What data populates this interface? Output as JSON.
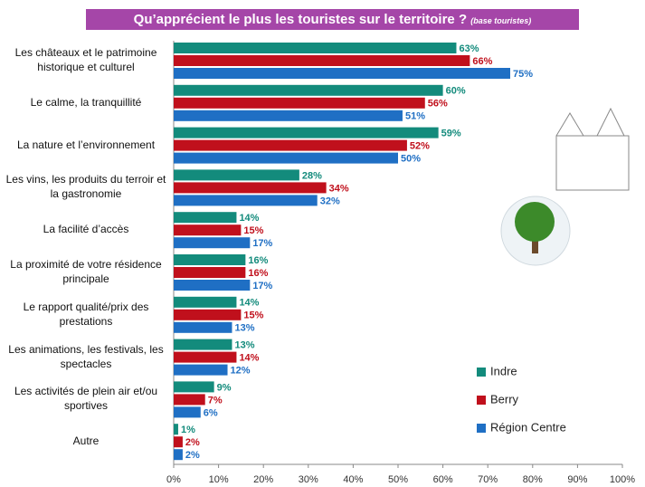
{
  "chart_data": {
    "type": "bar",
    "title": "Qu’apprécient le plus les touristes sur le territoire ?",
    "subtitle": "(base touristes)",
    "categories": [
      "Les châteaux et le patrimoine historique et culturel",
      "Le calme, la tranquillité",
      "La nature et l’environnement",
      "Les vins, les produits du terroir et la gastronomie",
      "La facilité d’accès",
      "La proximité de votre résidence principale",
      "Le rapport qualité/prix des prestations",
      "Les animations, les festivals, les spectacles",
      "Les activités de plein air et/ou sportives",
      "Autre"
    ],
    "series": [
      {
        "name": "Indre",
        "color": "#138b7c",
        "values": [
          63,
          60,
          59,
          28,
          14,
          16,
          14,
          13,
          9,
          1
        ],
        "value_labels": [
          "63%",
          "60%",
          "59%",
          "28%",
          "14%",
          "16%",
          "14%",
          "13%",
          "9%",
          "1%"
        ]
      },
      {
        "name": "Berry",
        "color": "#c0101c",
        "values": [
          66,
          56,
          52,
          34,
          15,
          16,
          15,
          14,
          7,
          2
        ],
        "value_labels": [
          "66%",
          "56%",
          "52%",
          "34%",
          "15%",
          "16%",
          "15%",
          "14%",
          "7%",
          "2%"
        ]
      },
      {
        "name": "Région Centre",
        "color": "#1f6fc4",
        "values": [
          75,
          51,
          50,
          32,
          17,
          17,
          13,
          12,
          6,
          2
        ],
        "value_labels": [
          "75%",
          "51%",
          "50%",
          "32%",
          "17%",
          "17%",
          "13%",
          "12%",
          "6%",
          "2%"
        ]
      }
    ],
    "xlim": [
      0,
      100
    ],
    "xticks": [
      {
        "value": 0,
        "label": "0%"
      },
      {
        "value": 10,
        "label": "10%"
      },
      {
        "value": 20,
        "label": "20%"
      },
      {
        "value": 30,
        "label": "30%"
      },
      {
        "value": 40,
        "label": "40%"
      },
      {
        "value": 50,
        "label": "50%"
      },
      {
        "value": 60,
        "label": "60%"
      },
      {
        "value": 70,
        "label": "70%"
      },
      {
        "value": 80,
        "label": "80%"
      },
      {
        "value": 90,
        "label": "90%"
      },
      {
        "value": 100,
        "label": "100%"
      }
    ],
    "grid": false,
    "legend": "lower-right"
  }
}
